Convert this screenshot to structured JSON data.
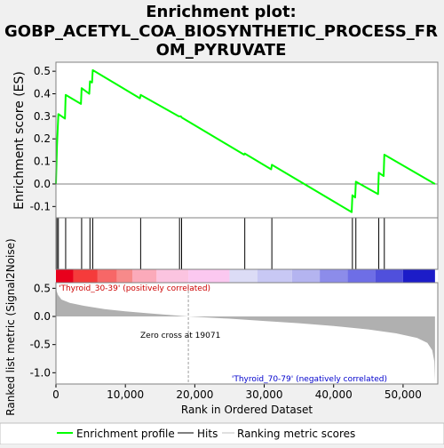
{
  "title_line1": "Enrichment plot:",
  "title_line2": "GOBP_ACETYL_COA_BIOSYNTHETIC_PROCESS_FR",
  "title_line3": "OM_PYRUVATE",
  "ylabel_top": "Enrichment score (ES)",
  "ylabel_bottom": "Ranked list metric (Signal2Noise)",
  "xlabel": "Rank in Ordered Dataset",
  "pos_label": "'Thyroid_30-39' (positively correlated)",
  "neg_label": "'Thyroid_70-79' (negatively correlated)",
  "zero_cross_label": "Zero cross at 19071",
  "legend": {
    "enrichment": "Enrichment profile",
    "hits": "Hits",
    "ranking": "Ranking metric scores"
  },
  "colors": {
    "enrichment_line": "#00ff00",
    "hits": "#000000",
    "ranking_fill": "#b0b0b0",
    "pos_label": "#cc0000",
    "neg_label": "#0000cc"
  },
  "chart_data": {
    "type": "line",
    "xlim": [
      0,
      55000
    ],
    "x_ticks": [
      0,
      10000,
      20000,
      30000,
      40000,
      50000
    ],
    "x_tick_labels": [
      "0",
      "10,000",
      "20,000",
      "30,000",
      "40,000",
      "50,000"
    ],
    "es_ylim": [
      -0.15,
      0.54
    ],
    "es_ticks": [
      -0.1,
      0.0,
      0.1,
      0.2,
      0.3,
      0.4,
      0.5
    ],
    "es_tick_labels": [
      "-0.1",
      "0.0",
      "0.1",
      "0.2",
      "0.3",
      "0.4",
      "0.5"
    ],
    "metric_ylim": [
      -1.2,
      0.6
    ],
    "metric_ticks": [
      -1.0,
      -0.5,
      0.0,
      0.5
    ],
    "metric_tick_labels": [
      "-1.0",
      "-0.5",
      "0.0",
      "0.5"
    ],
    "zero_cross": 19071,
    "total_ranks": 54600,
    "hits": [
      150,
      350,
      1400,
      3700,
      4900,
      5300,
      12200,
      17800,
      18100,
      27200,
      31100,
      42700,
      43200,
      46500,
      47300
    ],
    "enrichment_profile": [
      [
        0,
        0.0
      ],
      [
        150,
        0.17
      ],
      [
        350,
        0.31
      ],
      [
        1300,
        0.29
      ],
      [
        1400,
        0.395
      ],
      [
        3600,
        0.355
      ],
      [
        3700,
        0.425
      ],
      [
        4800,
        0.4
      ],
      [
        4900,
        0.455
      ],
      [
        5200,
        0.45
      ],
      [
        5300,
        0.505
      ],
      [
        12100,
        0.38
      ],
      [
        12200,
        0.395
      ],
      [
        17700,
        0.3
      ],
      [
        17800,
        0.3
      ],
      [
        18000,
        0.3
      ],
      [
        18100,
        0.295
      ],
      [
        27100,
        0.13
      ],
      [
        27200,
        0.135
      ],
      [
        31000,
        0.065
      ],
      [
        31100,
        0.085
      ],
      [
        42600,
        -0.125
      ],
      [
        42700,
        -0.05
      ],
      [
        43100,
        -0.06
      ],
      [
        43200,
        0.01
      ],
      [
        46400,
        -0.045
      ],
      [
        46500,
        0.05
      ],
      [
        47200,
        0.035
      ],
      [
        47300,
        0.13
      ],
      [
        54600,
        0.0
      ]
    ],
    "metric_profile": [
      [
        0,
        0.6
      ],
      [
        100,
        0.45
      ],
      [
        300,
        0.38
      ],
      [
        800,
        0.3
      ],
      [
        2000,
        0.24
      ],
      [
        4000,
        0.19
      ],
      [
        7000,
        0.13
      ],
      [
        10000,
        0.09
      ],
      [
        13000,
        0.06
      ],
      [
        16000,
        0.03
      ],
      [
        19071,
        0.0
      ],
      [
        25000,
        -0.04
      ],
      [
        30000,
        -0.08
      ],
      [
        35000,
        -0.12
      ],
      [
        40000,
        -0.17
      ],
      [
        45000,
        -0.23
      ],
      [
        49000,
        -0.3
      ],
      [
        52000,
        -0.38
      ],
      [
        53500,
        -0.47
      ],
      [
        54200,
        -0.6
      ],
      [
        54500,
        -0.8
      ],
      [
        54600,
        -1.15
      ]
    ],
    "color_bar": [
      {
        "from": 0,
        "to": 2500,
        "color": "#e8001c"
      },
      {
        "from": 2500,
        "to": 6000,
        "color": "#f53b3b"
      },
      {
        "from": 6000,
        "to": 8800,
        "color": "#f76767"
      },
      {
        "from": 8800,
        "to": 11000,
        "color": "#f78a8a"
      },
      {
        "from": 11000,
        "to": 14500,
        "color": "#fbaaba"
      },
      {
        "from": 14500,
        "to": 19071,
        "color": "#fbc4e0"
      },
      {
        "from": 19071,
        "to": 25000,
        "color": "#fbc8f0"
      },
      {
        "from": 25000,
        "to": 29000,
        "color": "#dcdcf6"
      },
      {
        "from": 29000,
        "to": 34000,
        "color": "#c8c8f4"
      },
      {
        "from": 34000,
        "to": 38000,
        "color": "#b4b4f0"
      },
      {
        "from": 38000,
        "to": 42000,
        "color": "#8c8cea"
      },
      {
        "from": 42000,
        "to": 46000,
        "color": "#6e6ee6"
      },
      {
        "from": 46000,
        "to": 50000,
        "color": "#5050dc"
      },
      {
        "from": 50000,
        "to": 54600,
        "color": "#1c1cc8"
      }
    ]
  }
}
